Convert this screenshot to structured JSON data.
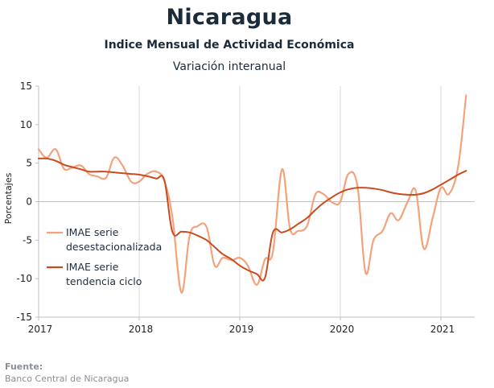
{
  "title": "Nicaragua",
  "subtitle": "Indice Mensual de  Actividad Económica",
  "subtitle2": "Variación interanual",
  "source": {
    "label": "Fuente:",
    "text": "Banco Central de Nicaragua"
  },
  "chart_data": {
    "type": "line",
    "ylabel": "Porcentajes",
    "ylim": [
      -15,
      15
    ],
    "yticks": [
      15,
      10,
      5,
      0,
      -5,
      -10,
      -15
    ],
    "xlim": [
      2017.0,
      2021.32
    ],
    "xticks": [
      {
        "value": 2017,
        "label": "2017"
      },
      {
        "value": 2018,
        "label": "2018"
      },
      {
        "value": 2019,
        "label": "2019"
      },
      {
        "value": 2020,
        "label": "2020"
      },
      {
        "value": 2021,
        "label": "2021"
      }
    ],
    "grid": "vertical at years, horizontal at zero",
    "legend": "left-middle",
    "colors": {
      "raw": "#f4a27c",
      "trend": "#c94b1f"
    },
    "series": [
      {
        "name": "IMAE serie desestacionalizada",
        "key": "raw",
        "points": [
          [
            2017.0,
            6.8
          ],
          [
            2017.08,
            5.7
          ],
          [
            2017.17,
            6.8
          ],
          [
            2017.25,
            4.3
          ],
          [
            2017.33,
            4.4
          ],
          [
            2017.42,
            4.7
          ],
          [
            2017.5,
            3.6
          ],
          [
            2017.58,
            3.3
          ],
          [
            2017.67,
            3.1
          ],
          [
            2017.75,
            5.7
          ],
          [
            2017.83,
            4.8
          ],
          [
            2017.92,
            2.6
          ],
          [
            2018.0,
            2.6
          ],
          [
            2018.08,
            3.6
          ],
          [
            2018.17,
            3.9
          ],
          [
            2018.25,
            2.7
          ],
          [
            2018.33,
            -2.0
          ],
          [
            2018.42,
            -11.8
          ],
          [
            2018.5,
            -4.5
          ],
          [
            2018.58,
            -3.2
          ],
          [
            2018.67,
            -3.3
          ],
          [
            2018.75,
            -8.3
          ],
          [
            2018.83,
            -7.3
          ],
          [
            2018.92,
            -7.6
          ],
          [
            2019.0,
            -7.3
          ],
          [
            2019.08,
            -8.3
          ],
          [
            2019.17,
            -10.8
          ],
          [
            2019.25,
            -7.5
          ],
          [
            2019.33,
            -6.5
          ],
          [
            2019.42,
            4.2
          ],
          [
            2019.5,
            -3.5
          ],
          [
            2019.58,
            -3.8
          ],
          [
            2019.67,
            -3.1
          ],
          [
            2019.75,
            0.9
          ],
          [
            2019.83,
            1.0
          ],
          [
            2019.92,
            -0.1
          ],
          [
            2020.0,
            0.0
          ],
          [
            2020.08,
            3.6
          ],
          [
            2020.17,
            2.0
          ],
          [
            2020.25,
            -9.2
          ],
          [
            2020.33,
            -5.0
          ],
          [
            2020.42,
            -3.8
          ],
          [
            2020.5,
            -1.5
          ],
          [
            2020.58,
            -2.4
          ],
          [
            2020.67,
            0.0
          ],
          [
            2020.75,
            1.4
          ],
          [
            2020.83,
            -6.1
          ],
          [
            2020.92,
            -2.0
          ],
          [
            2021.0,
            1.8
          ],
          [
            2021.08,
            1.0
          ],
          [
            2021.17,
            4.5
          ],
          [
            2021.25,
            13.8
          ]
        ]
      },
      {
        "name": "IMAE serie tendencia ciclo",
        "key": "trend",
        "points": [
          [
            2017.0,
            5.6
          ],
          [
            2017.08,
            5.6
          ],
          [
            2017.17,
            5.3
          ],
          [
            2017.25,
            4.8
          ],
          [
            2017.33,
            4.5
          ],
          [
            2017.42,
            4.2
          ],
          [
            2017.5,
            3.9
          ],
          [
            2017.58,
            3.9
          ],
          [
            2017.67,
            3.9
          ],
          [
            2017.75,
            3.8
          ],
          [
            2017.83,
            3.7
          ],
          [
            2017.92,
            3.6
          ],
          [
            2018.0,
            3.5
          ],
          [
            2018.08,
            3.3
          ],
          [
            2018.17,
            3.0
          ],
          [
            2018.25,
            2.8
          ],
          [
            2018.33,
            -3.9
          ],
          [
            2018.42,
            -3.9
          ],
          [
            2018.5,
            -4.0
          ],
          [
            2018.58,
            -4.4
          ],
          [
            2018.67,
            -5.0
          ],
          [
            2018.75,
            -5.9
          ],
          [
            2018.83,
            -6.8
          ],
          [
            2018.92,
            -7.5
          ],
          [
            2019.0,
            -8.3
          ],
          [
            2019.08,
            -8.9
          ],
          [
            2019.17,
            -9.4
          ],
          [
            2019.25,
            -9.9
          ],
          [
            2019.33,
            -4.0
          ],
          [
            2019.42,
            -4.0
          ],
          [
            2019.5,
            -3.6
          ],
          [
            2019.58,
            -2.9
          ],
          [
            2019.67,
            -2.1
          ],
          [
            2019.75,
            -1.1
          ],
          [
            2019.83,
            -0.2
          ],
          [
            2019.92,
            0.6
          ],
          [
            2020.0,
            1.2
          ],
          [
            2020.08,
            1.6
          ],
          [
            2020.17,
            1.8
          ],
          [
            2020.25,
            1.8
          ],
          [
            2020.33,
            1.7
          ],
          [
            2020.42,
            1.5
          ],
          [
            2020.5,
            1.2
          ],
          [
            2020.58,
            1.0
          ],
          [
            2020.67,
            0.9
          ],
          [
            2020.75,
            0.9
          ],
          [
            2020.83,
            1.1
          ],
          [
            2020.92,
            1.6
          ],
          [
            2021.0,
            2.2
          ],
          [
            2021.08,
            2.8
          ],
          [
            2021.17,
            3.5
          ],
          [
            2021.25,
            4.0
          ]
        ]
      }
    ],
    "legend_entries": [
      {
        "key": "raw",
        "lines": [
          "IMAE serie",
          "desestacionalizada"
        ]
      },
      {
        "key": "trend",
        "lines": [
          "IMAE serie",
          "tendencia ciclo"
        ]
      }
    ]
  }
}
